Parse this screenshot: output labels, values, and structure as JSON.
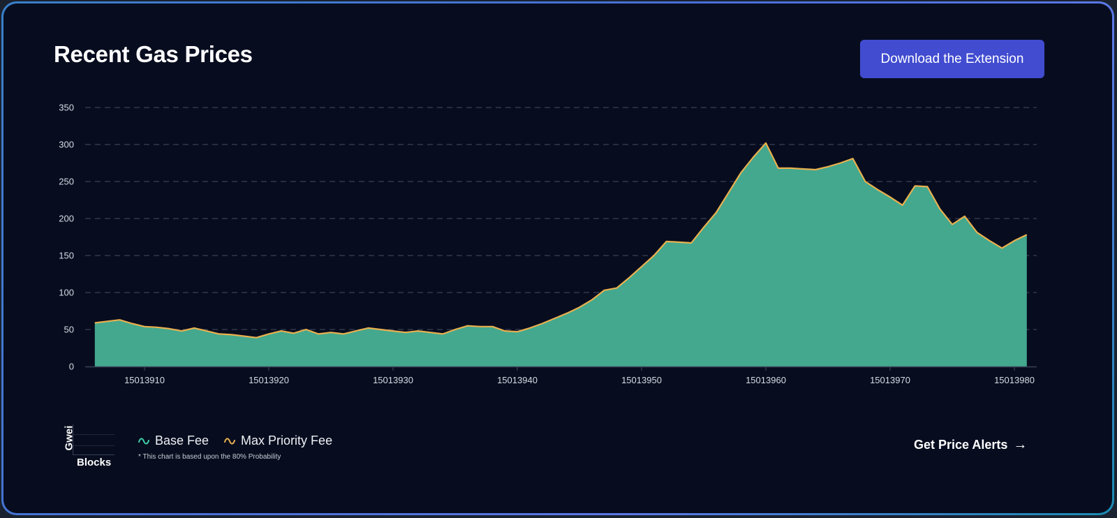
{
  "header": {
    "title": "Recent Gas Prices",
    "download_button": "Download the Extension"
  },
  "legend": {
    "mini_axis_y": "Gwei",
    "mini_axis_x": "Blocks",
    "items": [
      {
        "label": "Base Fee",
        "color": "#3fcfa7",
        "icon": "wave-icon"
      },
      {
        "label": "Max Priority Fee",
        "color": "#e9b04f",
        "icon": "wave-icon"
      }
    ],
    "footnote": "* This chart is based upon the 80% Probability"
  },
  "footer": {
    "alerts_link": "Get Price Alerts",
    "alerts_icon": "arrow-right-icon"
  },
  "colors": {
    "background": "#070d1f",
    "area_fill": "#43a88e",
    "line": "#e9b04f",
    "grid": "#3a4156",
    "button": "#414cd0"
  },
  "chart_data": {
    "type": "area",
    "title": "Recent Gas Prices",
    "xlabel": "Blocks",
    "ylabel": "Gwei",
    "ylim": [
      0,
      350
    ],
    "yticks": [
      0,
      50,
      100,
      150,
      200,
      250,
      300,
      350
    ],
    "xticks": [
      15013910,
      15013920,
      15013930,
      15013940,
      15013950,
      15013960,
      15013970,
      15013980
    ],
    "grid": true,
    "legend_position": "bottom-left",
    "note": "* This chart is based upon the 80% Probability",
    "x_start": 15013906,
    "x_end": 15013981,
    "series": [
      {
        "name": "Base Fee",
        "color": "#3fcfa7",
        "values": [
          59,
          61,
          63,
          58,
          54,
          53,
          51,
          48,
          52,
          48,
          44,
          43,
          41,
          39,
          44,
          48,
          45,
          50,
          44,
          46,
          44,
          48,
          52,
          50,
          48,
          46,
          48,
          46,
          44,
          50,
          55,
          54,
          54,
          48,
          47,
          52,
          58,
          65,
          72,
          80,
          90,
          103,
          106,
          120,
          135,
          150,
          169,
          168,
          167,
          188,
          208,
          235,
          262,
          283,
          302,
          268,
          268,
          267,
          266,
          270,
          275,
          281,
          250,
          239,
          229,
          218,
          244,
          243,
          213,
          192,
          203,
          181,
          170,
          160,
          170,
          178
        ]
      },
      {
        "name": "Max Priority Fee",
        "color": "#e9b04f",
        "values": [
          59,
          61,
          63,
          58,
          54,
          53,
          51,
          48,
          52,
          48,
          44,
          43,
          41,
          39,
          44,
          48,
          45,
          50,
          44,
          46,
          44,
          48,
          52,
          50,
          48,
          46,
          48,
          46,
          44,
          50,
          55,
          54,
          54,
          48,
          47,
          52,
          58,
          65,
          72,
          80,
          90,
          103,
          106,
          120,
          135,
          150,
          169,
          168,
          167,
          188,
          208,
          235,
          262,
          283,
          302,
          268,
          268,
          267,
          266,
          270,
          275,
          281,
          250,
          239,
          229,
          218,
          244,
          243,
          213,
          192,
          203,
          181,
          170,
          160,
          170,
          178
        ]
      }
    ]
  }
}
